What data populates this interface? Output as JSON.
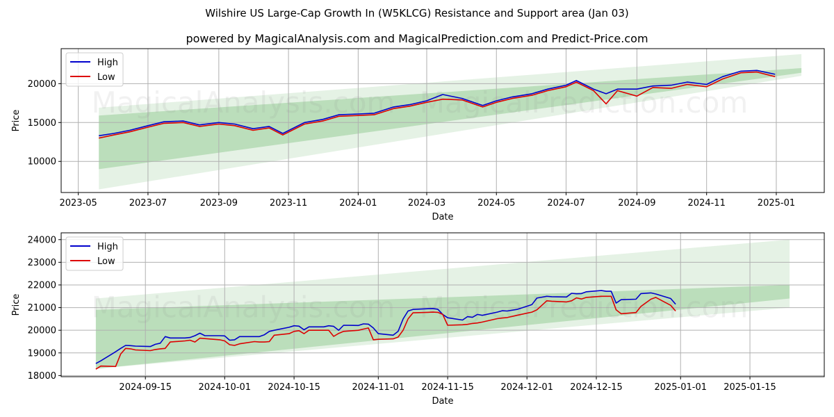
{
  "title": "Wilshire US Large-Cap Growth In (W5KLCG) Resistance and Support area (Jan 03)",
  "subtitle": "powered by MagicalAnalysis.com and MagicalPrediction.com and Predict-Price.com",
  "watermarks": [
    "MagicalAnalysis.com",
    "MagicalPrediction.com"
  ],
  "colors": {
    "high": "#0000cc",
    "low": "#dd0000",
    "band_dark": "#9fd09f",
    "band_light": "#cfe8cf"
  },
  "chart_data": [
    {
      "type": "line",
      "title": "",
      "xlabel": "Date",
      "ylabel": "Price",
      "grid": true,
      "legend": {
        "placement": "top-left",
        "entries": [
          "High",
          "Low"
        ]
      },
      "x_range": [
        "2023-04-16",
        "2025-02-12"
      ],
      "ylim": [
        6000,
        24500
      ],
      "x_ticks": [
        "2023-05",
        "2023-07",
        "2023-09",
        "2023-11",
        "2024-01",
        "2024-03",
        "2024-05",
        "2024-07",
        "2024-09",
        "2024-11",
        "2025-01"
      ],
      "y_ticks": [
        10000,
        15000,
        20000
      ],
      "bands": [
        {
          "name": "outer-band",
          "start": "2023-05-19",
          "end": "2025-01-23",
          "upper": [
            16900,
            23800
          ],
          "lower": [
            6400,
            21000
          ]
        },
        {
          "name": "inner-band",
          "start": "2023-05-19",
          "end": "2025-01-23",
          "upper": [
            15900,
            22000
          ],
          "lower": [
            9000,
            21400
          ]
        }
      ],
      "x": [
        "2023-05-19",
        "2023-06-01",
        "2023-06-15",
        "2023-07-01",
        "2023-07-15",
        "2023-08-01",
        "2023-08-15",
        "2023-09-01",
        "2023-09-15",
        "2023-10-01",
        "2023-10-15",
        "2023-10-27",
        "2023-11-15",
        "2023-12-01",
        "2023-12-15",
        "2024-01-01",
        "2024-01-15",
        "2024-02-01",
        "2024-02-15",
        "2024-03-01",
        "2024-03-15",
        "2024-04-01",
        "2024-04-19",
        "2024-05-01",
        "2024-05-15",
        "2024-06-01",
        "2024-06-15",
        "2024-07-01",
        "2024-07-10",
        "2024-07-25",
        "2024-08-05",
        "2024-08-15",
        "2024-09-01",
        "2024-09-15",
        "2024-10-01",
        "2024-10-15",
        "2024-11-01",
        "2024-11-15",
        "2024-12-01",
        "2024-12-15",
        "2024-12-31"
      ],
      "series": [
        {
          "name": "High",
          "values": [
            13300,
            13600,
            14000,
            14600,
            15100,
            15200,
            14700,
            15000,
            14800,
            14200,
            14500,
            13600,
            15000,
            15400,
            16000,
            16100,
            16200,
            17000,
            17300,
            17800,
            18600,
            18100,
            17200,
            17800,
            18300,
            18700,
            19300,
            19800,
            20400,
            19300,
            18700,
            19300,
            19300,
            19700,
            19800,
            20200,
            19900,
            20900,
            21600,
            21700,
            21200
          ]
        },
        {
          "name": "Low",
          "values": [
            13000,
            13400,
            13800,
            14400,
            14900,
            15000,
            14500,
            14800,
            14600,
            14000,
            14300,
            13400,
            14800,
            15200,
            15800,
            15900,
            16000,
            16800,
            17100,
            17600,
            18000,
            17900,
            17000,
            17600,
            18100,
            18500,
            19100,
            19600,
            20200,
            19100,
            17400,
            19100,
            18400,
            19500,
            19400,
            19900,
            19600,
            20600,
            21400,
            21500,
            20900
          ]
        }
      ]
    },
    {
      "type": "line",
      "title": "",
      "xlabel": "Date",
      "ylabel": "Price",
      "grid": true,
      "legend": {
        "placement": "top-left",
        "entries": [
          "High",
          "Low"
        ]
      },
      "x_range": [
        "2024-08-29",
        "2025-01-30"
      ],
      "ylim": [
        17950,
        24300
      ],
      "x_ticks": [
        "2024-09-15",
        "2024-10-01",
        "2024-10-15",
        "2024-11-01",
        "2024-11-15",
        "2024-12-01",
        "2024-12-15",
        "2025-01-01",
        "2025-01-15"
      ],
      "y_ticks": [
        18000,
        19000,
        20000,
        21000,
        22000,
        23000,
        24000
      ],
      "bands": [
        {
          "name": "outer-band",
          "start": "2024-09-05",
          "end": "2025-01-23",
          "upper": [
            21400,
            24000
          ],
          "lower": [
            18300,
            21000
          ]
        },
        {
          "name": "inner-band",
          "start": "2024-09-05",
          "end": "2025-01-23",
          "upper": [
            20900,
            22000
          ],
          "lower": [
            18300,
            21400
          ]
        }
      ],
      "x": [
        "2024-09-05",
        "2024-09-06",
        "2024-09-09",
        "2024-09-10",
        "2024-09-11",
        "2024-09-12",
        "2024-09-13",
        "2024-09-16",
        "2024-09-17",
        "2024-09-18",
        "2024-09-19",
        "2024-09-20",
        "2024-09-23",
        "2024-09-24",
        "2024-09-25",
        "2024-09-26",
        "2024-09-27",
        "2024-09-30",
        "2024-10-01",
        "2024-10-02",
        "2024-10-03",
        "2024-10-04",
        "2024-10-07",
        "2024-10-08",
        "2024-10-09",
        "2024-10-10",
        "2024-10-11",
        "2024-10-14",
        "2024-10-15",
        "2024-10-16",
        "2024-10-17",
        "2024-10-18",
        "2024-10-21",
        "2024-10-22",
        "2024-10-23",
        "2024-10-24",
        "2024-10-25",
        "2024-10-28",
        "2024-10-29",
        "2024-10-30",
        "2024-10-31",
        "2024-11-01",
        "2024-11-04",
        "2024-11-05",
        "2024-11-06",
        "2024-11-07",
        "2024-11-08",
        "2024-11-11",
        "2024-11-12",
        "2024-11-13",
        "2024-11-14",
        "2024-11-15",
        "2024-11-18",
        "2024-11-19",
        "2024-11-20",
        "2024-11-21",
        "2024-11-22",
        "2024-11-25",
        "2024-11-26",
        "2024-11-27",
        "2024-11-29",
        "2024-12-02",
        "2024-12-03",
        "2024-12-04",
        "2024-12-05",
        "2024-12-06",
        "2024-12-09",
        "2024-12-10",
        "2024-12-11",
        "2024-12-12",
        "2024-12-13",
        "2024-12-16",
        "2024-12-17",
        "2024-12-18",
        "2024-12-19",
        "2024-12-20",
        "2024-12-23",
        "2024-12-24",
        "2024-12-26",
        "2024-12-27",
        "2024-12-30",
        "2024-12-31"
      ],
      "series": [
        {
          "name": "High",
          "values": [
            18530,
            18650,
            19050,
            19200,
            19330,
            19320,
            19300,
            19280,
            19380,
            19430,
            19720,
            19660,
            19660,
            19680,
            19760,
            19870,
            19760,
            19760,
            19750,
            19560,
            19580,
            19720,
            19720,
            19720,
            19800,
            19950,
            20000,
            20130,
            20200,
            20180,
            20020,
            20150,
            20150,
            20200,
            20170,
            20000,
            20220,
            20210,
            20280,
            20270,
            20100,
            19850,
            19780,
            19950,
            20500,
            20850,
            20920,
            20950,
            20960,
            20930,
            20700,
            20550,
            20450,
            20600,
            20570,
            20700,
            20660,
            20800,
            20860,
            20850,
            20920,
            21130,
            21420,
            21460,
            21500,
            21480,
            21470,
            21630,
            21610,
            21620,
            21700,
            21750,
            21720,
            21720,
            21200,
            21350,
            21370,
            21620,
            21650,
            21600,
            21400,
            21150
          ]
        },
        {
          "name": "Low",
          "values": [
            18280,
            18420,
            18400,
            18950,
            19200,
            19180,
            19130,
            19100,
            19150,
            19180,
            19200,
            19480,
            19530,
            19560,
            19480,
            19650,
            19630,
            19580,
            19530,
            19360,
            19330,
            19400,
            19500,
            19480,
            19480,
            19500,
            19780,
            19850,
            19950,
            19980,
            19850,
            20000,
            20000,
            20000,
            19730,
            19860,
            19950,
            20000,
            20050,
            20100,
            19580,
            19600,
            19620,
            19700,
            20000,
            20500,
            20770,
            20790,
            20800,
            20790,
            20700,
            20220,
            20240,
            20260,
            20300,
            20320,
            20360,
            20510,
            20540,
            20560,
            20660,
            20800,
            20900,
            21100,
            21300,
            21280,
            21250,
            21300,
            21430,
            21380,
            21450,
            21500,
            21500,
            21500,
            20900,
            20730,
            20780,
            21050,
            21370,
            21450,
            21100,
            20850
          ]
        }
      ]
    }
  ]
}
